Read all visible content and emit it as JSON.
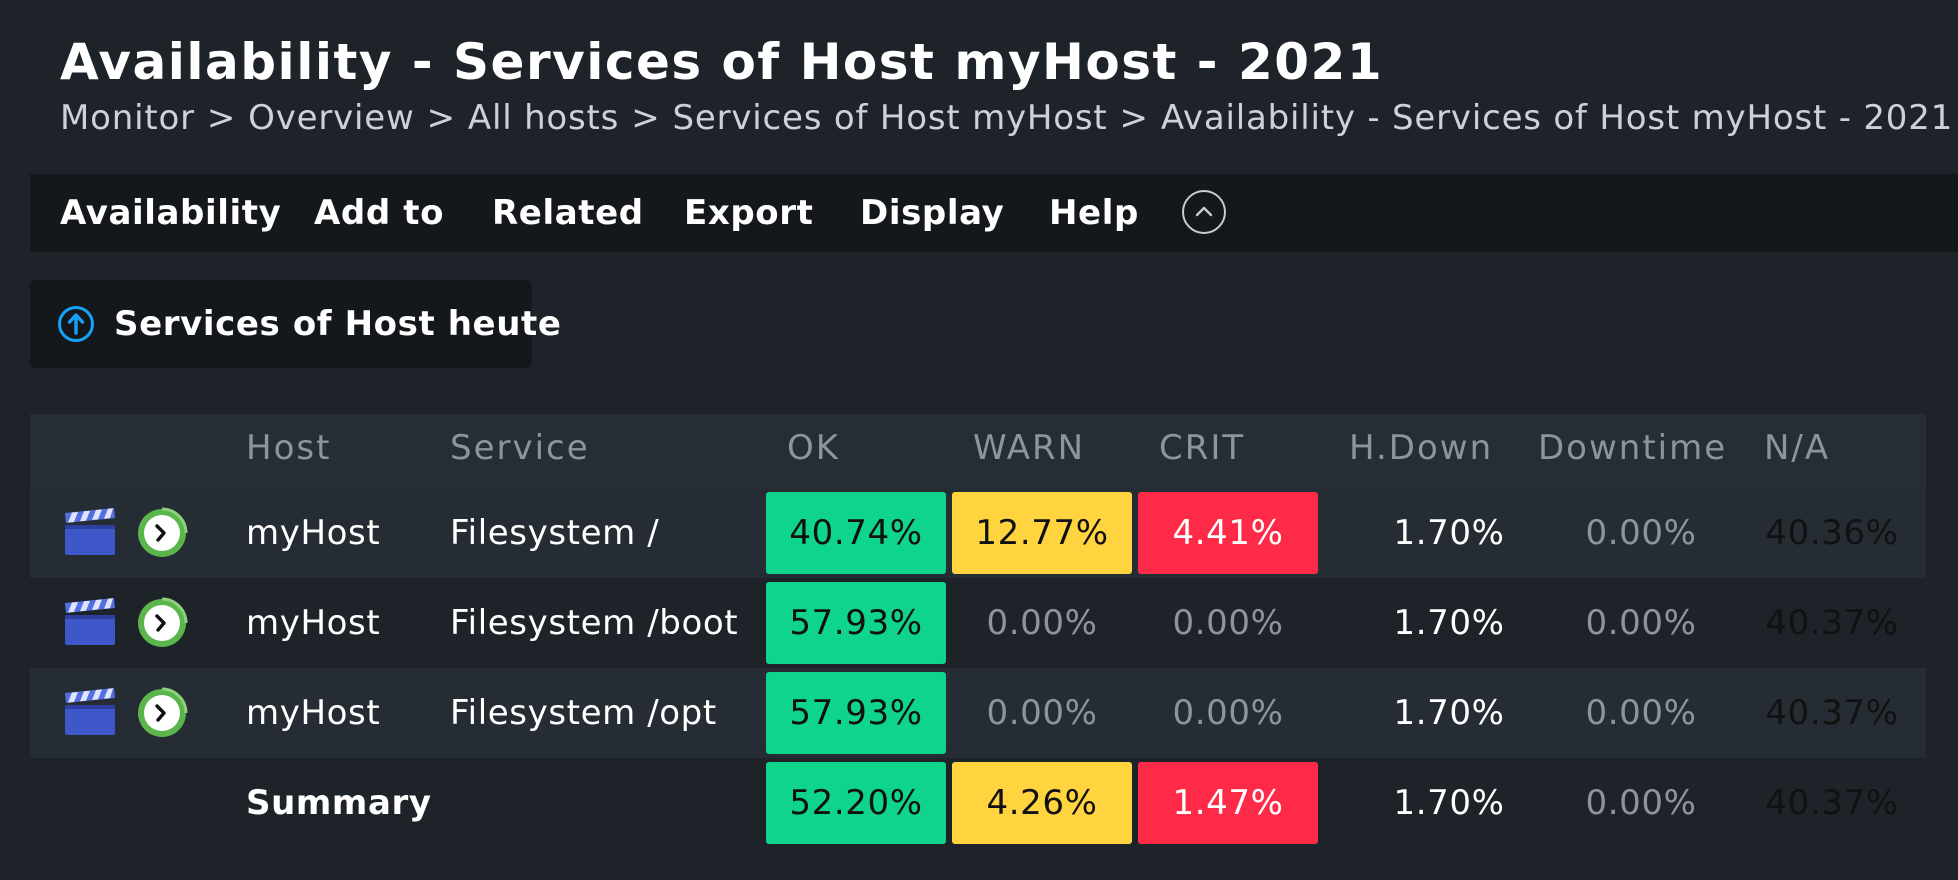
{
  "page": {
    "title": "Availability - Services of Host myHost - 2021",
    "breadcrumb": [
      "Monitor",
      "Overview",
      "All hosts",
      "Services of Host myHost",
      "Availability - Services of Host myHost - 2021"
    ],
    "breadcrumb_separator": ">"
  },
  "menu": {
    "items": [
      "Availability",
      "Add to",
      "Related",
      "Export",
      "Display",
      "Help"
    ],
    "collapse_icon": "chevron-up-circle-icon"
  },
  "context_button": {
    "label": "Services of Host heute",
    "icon": "arrow-up-circle-icon"
  },
  "table": {
    "headers": {
      "host": "Host",
      "service": "Service",
      "ok": "OK",
      "warn": "WARN",
      "crit": "CRIT",
      "hdown": "H.Down",
      "downtime": "Downtime",
      "na": "N/A"
    },
    "rows": [
      {
        "host": "myHost",
        "service": "Filesystem /",
        "ok": "40.74%",
        "warn": "12.77%",
        "crit": "4.41%",
        "hdown": "1.70%",
        "downtime": "0.00%",
        "na": "40.36%"
      },
      {
        "host": "myHost",
        "service": "Filesystem /boot",
        "ok": "57.93%",
        "warn": "0.00%",
        "crit": "0.00%",
        "hdown": "1.70%",
        "downtime": "0.00%",
        "na": "40.37%"
      },
      {
        "host": "myHost",
        "service": "Filesystem /opt",
        "ok": "57.93%",
        "warn": "0.00%",
        "crit": "0.00%",
        "hdown": "1.70%",
        "downtime": "0.00%",
        "na": "40.37%"
      }
    ],
    "summary": {
      "label": "Summary",
      "ok": "52.20%",
      "warn": "4.26%",
      "crit": "1.47%",
      "hdown": "1.70%",
      "downtime": "0.00%",
      "na": "40.37%"
    },
    "row_icons": [
      "clapperboard-icon",
      "timeline-icon"
    ]
  },
  "colors": {
    "background": "#1e232a",
    "ok": "#0fd48c",
    "warn": "#ffd43f",
    "crit": "#ff2a48",
    "host_down": "#0084dc",
    "not_available": "#a4a4a4"
  }
}
